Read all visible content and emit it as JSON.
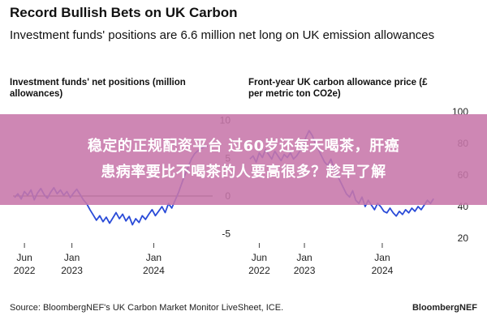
{
  "header": {
    "title": "Record Bullish Bets on UK Carbon",
    "subtitle": "Investment funds' positions are 6.6 million net long on UK emission allowances"
  },
  "overlay": {
    "line1": "稳定的正规配资平台 过60岁还每天喝茶，肝癌",
    "line2": "患病率要比不喝茶的人要高很多？趁早了解"
  },
  "footer": {
    "source": "Source: BloombergNEF's UK Carbon Market Monitor LiveSheet, ICE.",
    "brand": "BloombergNEF"
  },
  "colors": {
    "line": "#2a4bd8",
    "overlay": "#c776aa",
    "zero_line": "#222222"
  },
  "chart_data": [
    {
      "type": "line",
      "title_lines": [
        "Investment funds' net positions (million",
        "allowances)"
      ],
      "x_ticks": [
        {
          "label": [
            "Jun",
            "2022"
          ],
          "x": 2022.42
        },
        {
          "label": [
            "Jan",
            "2023"
          ],
          "x": 2023.0
        },
        {
          "label": [
            "Jan",
            "2024"
          ],
          "x": 2024.0
        }
      ],
      "y_ticks": [
        10,
        5,
        0,
        -5
      ],
      "ylim": [
        -6,
        12
      ],
      "xlim": [
        2022.28,
        2024.72
      ],
      "grid": false,
      "series": [
        {
          "x": [
            2022.3,
            2022.34,
            2022.38,
            2022.42,
            2022.46,
            2022.5,
            2022.54,
            2022.58,
            2022.62,
            2022.66,
            2022.7,
            2022.74,
            2022.78,
            2022.82,
            2022.86,
            2022.9,
            2022.94,
            2022.98,
            2023.02,
            2023.06,
            2023.1,
            2023.14,
            2023.18,
            2023.22,
            2023.26,
            2023.3,
            2023.34,
            2023.38,
            2023.42,
            2023.46,
            2023.5,
            2023.54,
            2023.58,
            2023.62,
            2023.66,
            2023.7,
            2023.74,
            2023.78,
            2023.82,
            2023.86,
            2023.9,
            2023.94,
            2023.98,
            2024.02,
            2024.06,
            2024.1,
            2024.14,
            2024.18,
            2024.22,
            2024.26,
            2024.3,
            2024.34,
            2024.38,
            2024.42,
            2024.46,
            2024.5,
            2024.54,
            2024.58,
            2024.62,
            2024.66
          ],
          "values": [
            -0.2,
            0.3,
            -0.4,
            0.6,
            0.1,
            0.8,
            -0.5,
            0.4,
            1.0,
            0.2,
            -0.3,
            0.5,
            1.1,
            0.3,
            0.8,
            0.1,
            0.6,
            -0.2,
            0.4,
            0.9,
            0.2,
            -0.5,
            -1.0,
            -1.8,
            -2.5,
            -3.2,
            -2.6,
            -3.4,
            -2.8,
            -3.6,
            -2.9,
            -2.2,
            -3.0,
            -2.4,
            -3.3,
            -2.7,
            -3.8,
            -3.0,
            -3.5,
            -2.6,
            -3.1,
            -2.4,
            -1.8,
            -2.6,
            -2.0,
            -1.4,
            -2.2,
            -1.0,
            -1.6,
            -0.6,
            0.4,
            1.6,
            2.8,
            3.8,
            4.9,
            5.6,
            6.0,
            6.3,
            6.5,
            6.6
          ]
        }
      ]
    },
    {
      "type": "line",
      "title_lines": [
        "Front-year UK carbon allowance price (£",
        "per metric ton CO2e)"
      ],
      "x_ticks": [
        {
          "label": [
            "Jun",
            "2022"
          ],
          "x": 2022.42
        },
        {
          "label": [
            "Jan",
            "2023"
          ],
          "x": 2023.0
        },
        {
          "label": [
            "Jan",
            "2024"
          ],
          "x": 2024.0
        }
      ],
      "y_ticks": [
        100,
        80,
        60,
        40,
        20
      ],
      "ylim": [
        18,
        104
      ],
      "xlim": [
        2022.28,
        2024.72
      ],
      "grid": false,
      "series": [
        {
          "x": [
            2022.3,
            2022.34,
            2022.38,
            2022.42,
            2022.46,
            2022.5,
            2022.54,
            2022.58,
            2022.62,
            2022.66,
            2022.7,
            2022.74,
            2022.78,
            2022.82,
            2022.86,
            2022.9,
            2022.94,
            2022.98,
            2023.02,
            2023.06,
            2023.1,
            2023.14,
            2023.18,
            2023.22,
            2023.26,
            2023.3,
            2023.34,
            2023.38,
            2023.42,
            2023.46,
            2023.5,
            2023.54,
            2023.58,
            2023.62,
            2023.66,
            2023.7,
            2023.74,
            2023.78,
            2023.82,
            2023.86,
            2023.9,
            2023.94,
            2023.98,
            2024.02,
            2024.06,
            2024.1,
            2024.14,
            2024.18,
            2024.22,
            2024.26,
            2024.3,
            2024.34,
            2024.38,
            2024.42,
            2024.46,
            2024.5,
            2024.54,
            2024.58,
            2024.62,
            2024.66
          ],
          "values": [
            70,
            72,
            68,
            74,
            71,
            76,
            73,
            70,
            75,
            72,
            69,
            73,
            71,
            74,
            70,
            72,
            75,
            78,
            84,
            88,
            85,
            80,
            76,
            72,
            68,
            66,
            70,
            64,
            60,
            56,
            52,
            48,
            46,
            50,
            44,
            42,
            46,
            40,
            44,
            41,
            38,
            42,
            40,
            37,
            36,
            39,
            36,
            34,
            37,
            35,
            38,
            36,
            39,
            37,
            40,
            38,
            41,
            44,
            42,
            45
          ]
        }
      ]
    }
  ]
}
